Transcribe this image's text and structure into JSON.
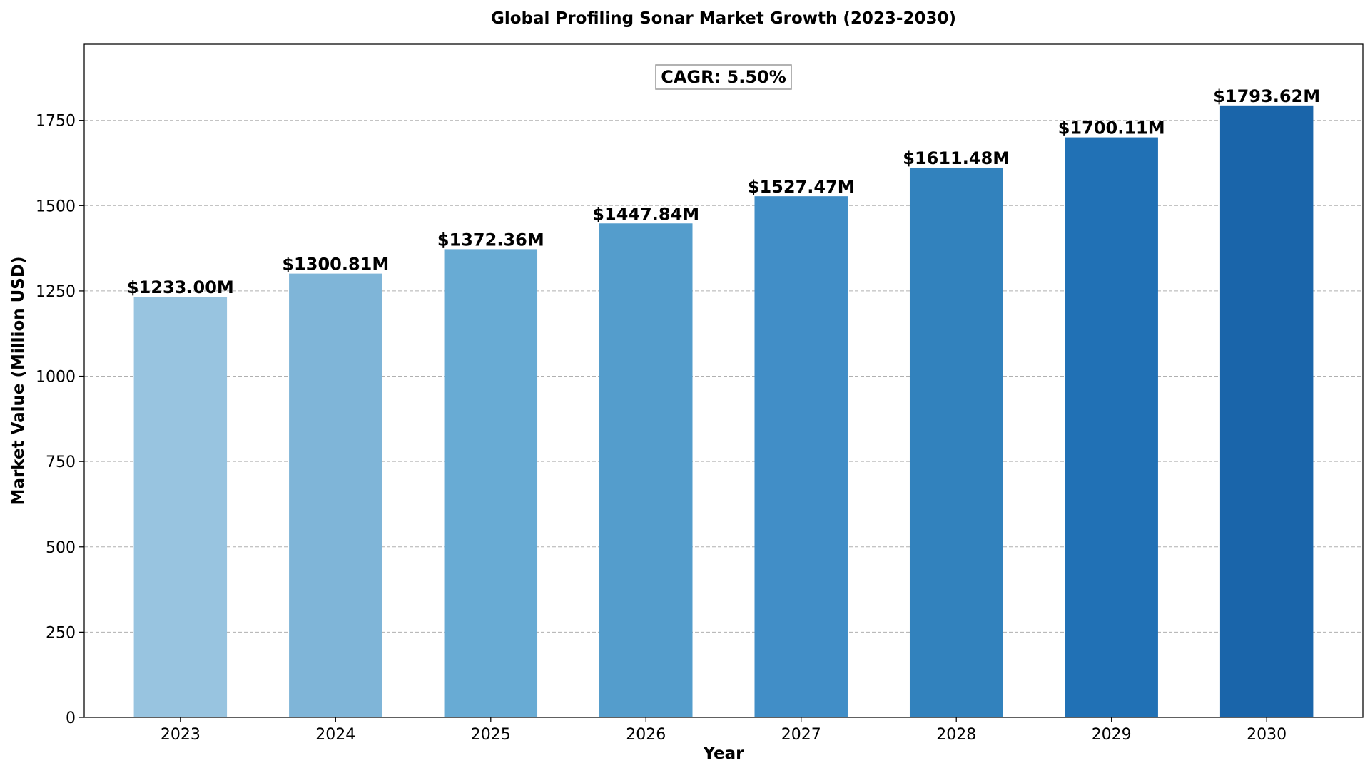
{
  "chart_data": {
    "type": "bar",
    "title": "Global Profiling Sonar Market Growth (2023-2030)",
    "xlabel": "Year",
    "ylabel": "Market Value (Million USD)",
    "categories": [
      "2023",
      "2024",
      "2025",
      "2026",
      "2027",
      "2028",
      "2029",
      "2030"
    ],
    "values": [
      1233.0,
      1300.81,
      1372.36,
      1447.84,
      1527.47,
      1611.48,
      1700.11,
      1793.62
    ],
    "value_labels": [
      "$1233.00M",
      "$1300.81M",
      "$1372.36M",
      "$1447.84M",
      "$1527.47M",
      "$1611.48M",
      "$1700.11M",
      "$1793.62M"
    ],
    "bar_colors": [
      "#98c4e0",
      "#7fb5d8",
      "#68abd4",
      "#549dcc",
      "#418ec7",
      "#3282bd",
      "#2171b5",
      "#1a65aa"
    ],
    "ylim": [
      0,
      1973
    ],
    "yticks": [
      0,
      250,
      500,
      750,
      1000,
      1250,
      1500,
      1750
    ],
    "grid": "horizontal dashed",
    "annotation": "CAGR: 5.50%"
  }
}
